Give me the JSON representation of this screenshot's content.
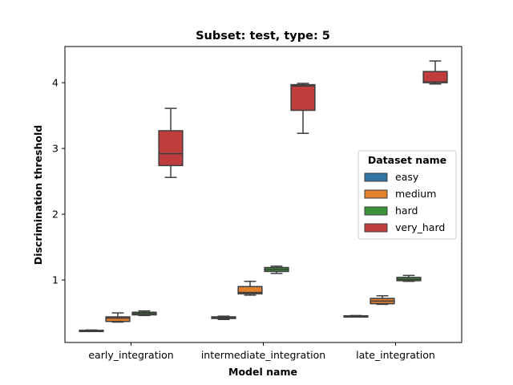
{
  "chart_data": {
    "type": "box",
    "title": "Subset: test, type: 5",
    "xlabel": "Model name",
    "ylabel": "Discrimination threshold",
    "categories": [
      "early_integration",
      "intermediate_integration",
      "late_integration"
    ],
    "ylim": [
      0.05,
      4.55
    ],
    "yticks": [
      1,
      2,
      3,
      4
    ],
    "legend": {
      "title": "Dataset name",
      "position": "center-right"
    },
    "series": [
      {
        "name": "easy",
        "color": "#3274a1",
        "boxes": [
          {
            "min": 0.22,
            "q1": 0.225,
            "median": 0.23,
            "q3": 0.235,
            "max": 0.24
          },
          {
            "min": 0.4,
            "q1": 0.415,
            "median": 0.43,
            "q3": 0.44,
            "max": 0.45
          },
          {
            "min": 0.44,
            "q1": 0.445,
            "median": 0.45,
            "q3": 0.455,
            "max": 0.46
          }
        ]
      },
      {
        "name": "medium",
        "color": "#e1812c",
        "boxes": [
          {
            "min": 0.36,
            "q1": 0.37,
            "median": 0.42,
            "q3": 0.44,
            "max": 0.5
          },
          {
            "min": 0.77,
            "q1": 0.79,
            "median": 0.81,
            "q3": 0.9,
            "max": 0.98
          },
          {
            "min": 0.63,
            "q1": 0.64,
            "median": 0.68,
            "q3": 0.72,
            "max": 0.76
          }
        ]
      },
      {
        "name": "hard",
        "color": "#3a923a",
        "boxes": [
          {
            "min": 0.46,
            "q1": 0.47,
            "median": 0.49,
            "q3": 0.51,
            "max": 0.53
          },
          {
            "min": 1.1,
            "q1": 1.13,
            "median": 1.16,
            "q3": 1.19,
            "max": 1.21
          },
          {
            "min": 0.98,
            "q1": 0.99,
            "median": 1.01,
            "q3": 1.04,
            "max": 1.07
          }
        ]
      },
      {
        "name": "very_hard",
        "color": "#c03d3e",
        "boxes": [
          {
            "min": 2.56,
            "q1": 2.74,
            "median": 2.92,
            "q3": 3.27,
            "max": 3.61
          },
          {
            "min": 3.23,
            "q1": 3.58,
            "median": 3.95,
            "q3": 3.97,
            "max": 3.99
          },
          {
            "min": 3.98,
            "q1": 4.0,
            "median": 4.01,
            "q3": 4.17,
            "max": 4.33
          }
        ]
      }
    ]
  }
}
